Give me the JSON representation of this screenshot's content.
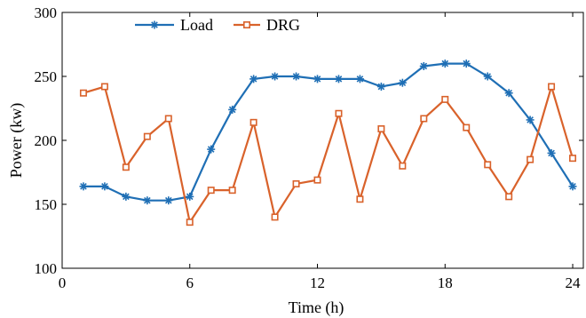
{
  "chart_data": {
    "type": "line",
    "xlabel": "Time (h)",
    "ylabel": "Power (kw)",
    "xlim": [
      0,
      24.5
    ],
    "ylim": [
      100,
      300
    ],
    "xticks": [
      0,
      6,
      12,
      18,
      24
    ],
    "yticks": [
      100,
      150,
      200,
      250,
      300
    ],
    "grid": false,
    "legend_position": "top-left",
    "x": [
      1,
      2,
      3,
      4,
      5,
      6,
      7,
      8,
      9,
      10,
      11,
      12,
      13,
      14,
      15,
      16,
      17,
      18,
      19,
      20,
      21,
      22,
      23,
      24
    ],
    "series": [
      {
        "name": "Load",
        "color": "#1f6fb5",
        "marker": "asterisk",
        "values": [
          164,
          164,
          156,
          153,
          153,
          156,
          193,
          224,
          248,
          250,
          250,
          248,
          248,
          248,
          242,
          245,
          258,
          260,
          260,
          250,
          237,
          216,
          190,
          164
        ]
      },
      {
        "name": "DRG",
        "color": "#d9622b",
        "marker": "square",
        "values": [
          237,
          242,
          179,
          203,
          217,
          136,
          161,
          161,
          214,
          140,
          166,
          169,
          221,
          154,
          209,
          180,
          217,
          232,
          210,
          181,
          156,
          185,
          242,
          186
        ]
      }
    ]
  }
}
